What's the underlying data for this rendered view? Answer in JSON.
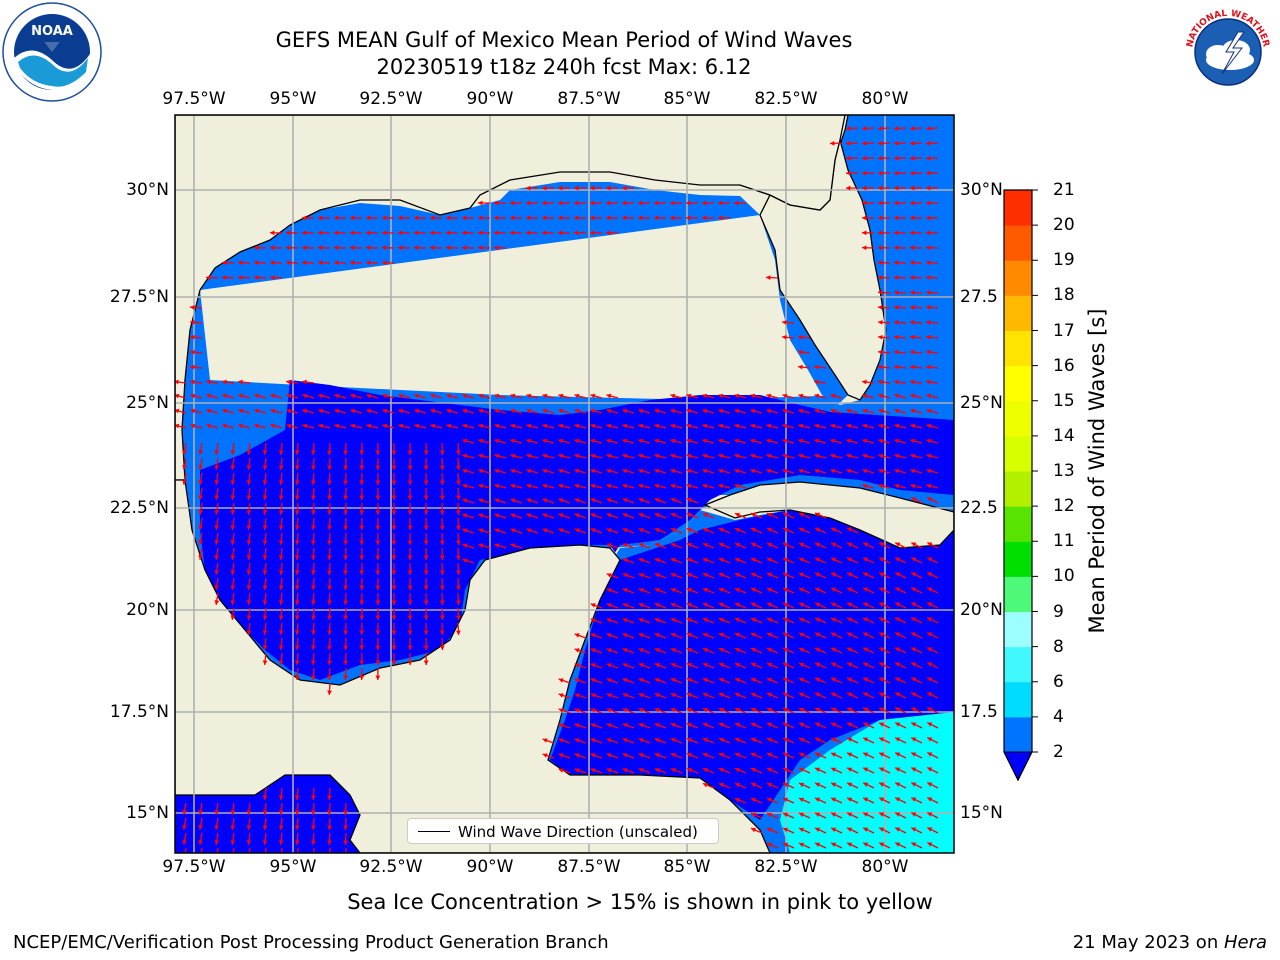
{
  "title": {
    "line1": "GEFS MEAN Gulf of Mexico Mean Period of Wind Waves",
    "line2": "20230519 t18z 240h fcst   Max: 6.12"
  },
  "logos": {
    "left": "noaa-logo",
    "right": "nws-logo"
  },
  "map": {
    "lon_ticks": [
      "97.5°W",
      "95°W",
      "92.5°W",
      "90°W",
      "87.5°W",
      "85°W",
      "82.5°W",
      "80°W"
    ],
    "lat_ticks_left": [
      "30°N",
      "27.5°N",
      "25°N",
      "22.5°N",
      "20°N",
      "17.5°N",
      "15°N"
    ],
    "lat_ticks_right": [
      "30°N",
      "27.5",
      "25°N",
      "22.5",
      "20°N",
      "17.5",
      "15°N"
    ],
    "lon_range": [
      -98,
      -78.3
    ],
    "lat_range": [
      14,
      31.7
    ],
    "land_color": "#efefdc",
    "vector_color": "#ff0000",
    "legend": "Wind Wave Direction (unscaled)"
  },
  "colorbar": {
    "label": "Mean Period of Wind Waves [s]",
    "ticks": [
      "2",
      "4",
      "6",
      "8",
      "9",
      "10",
      "11",
      "12",
      "13",
      "14",
      "15",
      "16",
      "17",
      "18",
      "19",
      "20",
      "21"
    ],
    "colors": [
      "#0074ff",
      "#00dcff",
      "#42f8ff",
      "#9cfefe",
      "#4ef97a",
      "#00e000",
      "#58e400",
      "#b2f000",
      "#d8ff00",
      "#eeff00",
      "#ffff00",
      "#ffe400",
      "#ffba00",
      "#ff8a00",
      "#ff5a00",
      "#ff2e00",
      "#ff0000"
    ],
    "extend_color": "#0000ff"
  },
  "notes": {
    "ice": "Sea Ice Concentration > 15% is shown in pink to yellow",
    "footer_left": "NCEP/EMC/Verification Post Processing Product Generation Branch",
    "footer_date": "21 May 2023 on ",
    "footer_host": "Hera"
  }
}
